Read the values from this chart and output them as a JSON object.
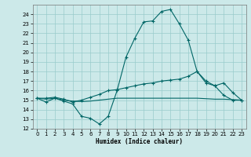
{
  "x": [
    0,
    1,
    2,
    3,
    4,
    5,
    6,
    7,
    8,
    9,
    10,
    11,
    12,
    13,
    14,
    15,
    16,
    17,
    18,
    19,
    20,
    21,
    22,
    23
  ],
  "line1": [
    15.2,
    14.8,
    15.2,
    14.9,
    14.6,
    13.3,
    13.1,
    12.5,
    13.3,
    16.0,
    19.5,
    21.5,
    23.2,
    23.3,
    24.3,
    24.5,
    23.0,
    21.3,
    18.0,
    17.0,
    16.5,
    15.5,
    15.0,
    15.0
  ],
  "line2": [
    15.2,
    15.2,
    15.3,
    15.1,
    14.8,
    15.0,
    15.3,
    15.6,
    16.0,
    16.1,
    16.3,
    16.5,
    16.7,
    16.8,
    17.0,
    17.1,
    17.2,
    17.5,
    18.0,
    16.8,
    16.5,
    16.8,
    15.8,
    15.0
  ],
  "line3": [
    15.2,
    15.1,
    15.2,
    15.0,
    14.9,
    14.85,
    14.9,
    15.0,
    15.1,
    15.2,
    15.2,
    15.2,
    15.2,
    15.2,
    15.2,
    15.2,
    15.2,
    15.2,
    15.2,
    15.15,
    15.1,
    15.1,
    15.05,
    15.0
  ],
  "bg_color": "#cce9e9",
  "grid_color": "#99cccc",
  "line_color": "#006666",
  "xlabel": "Humidex (Indice chaleur)",
  "ylim_min": 12,
  "ylim_max": 25,
  "xlim_min": -0.5,
  "xlim_max": 23.5,
  "yticks": [
    12,
    13,
    14,
    15,
    16,
    17,
    18,
    19,
    20,
    21,
    22,
    23,
    24
  ],
  "xticks": [
    0,
    1,
    2,
    3,
    4,
    5,
    6,
    7,
    8,
    9,
    10,
    11,
    12,
    13,
    14,
    15,
    16,
    17,
    18,
    19,
    20,
    21,
    22,
    23
  ],
  "xlabel_fontsize": 5.5,
  "tick_fontsize": 5.0,
  "marker_size": 3.0,
  "line_width": 0.8
}
